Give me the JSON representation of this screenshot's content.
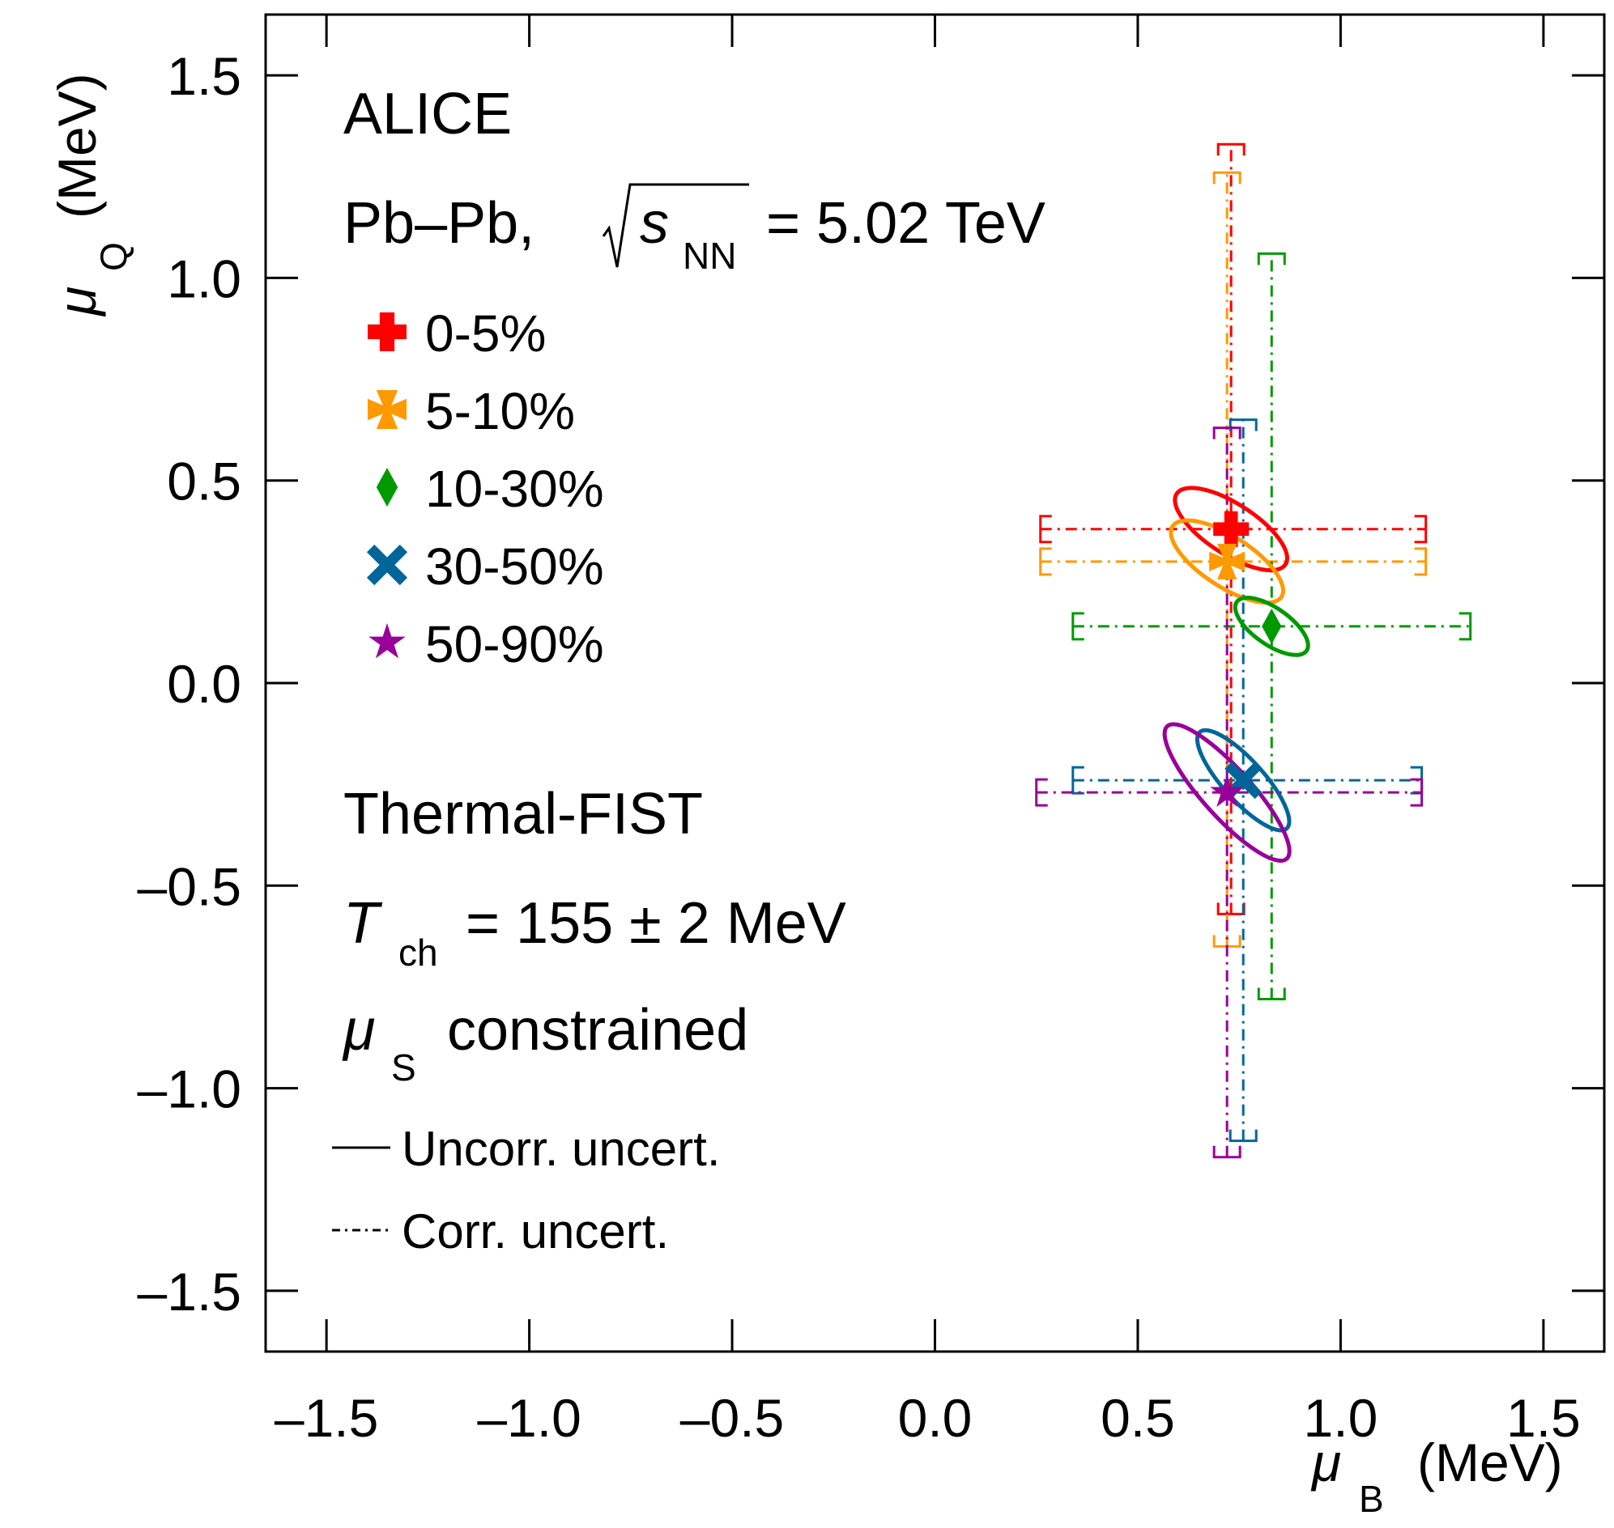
{
  "chart_data": {
    "type": "scatter",
    "xlabel": {
      "symbol": "μ",
      "sub": "B",
      "unit": "(MeV)"
    },
    "ylabel": {
      "symbol": "μ",
      "sub": "Q",
      "unit": "(MeV)"
    },
    "xlim": [
      -1.65,
      1.65
    ],
    "ylim": [
      -1.65,
      1.65
    ],
    "xticks": [
      -1.5,
      -1.0,
      -0.5,
      0.0,
      0.5,
      1.0,
      1.5
    ],
    "xtick_labels": [
      "–1.5",
      "–1.0",
      "–0.5",
      "0.0",
      "0.5",
      "1.0",
      "1.5"
    ],
    "yticks": [
      -1.5,
      -1.0,
      -0.5,
      0.0,
      0.5,
      1.0,
      1.5
    ],
    "ytick_labels": [
      "–1.5",
      "–1.0",
      "–0.5",
      "0.0",
      "0.5",
      "1.0",
      "1.5"
    ],
    "annotations": {
      "experiment": "ALICE",
      "system_prefix": "Pb–Pb,",
      "energy_s": "s",
      "energy_sub": "NN",
      "energy_value": "= 5.02 TeV",
      "model": "Thermal-FIST",
      "temp_symbol": "T",
      "temp_sub": "ch",
      "temp_value": "= 155 ± 2 MeV",
      "mus_symbol": "μ",
      "mus_sub": "S",
      "mus_text": "constrained"
    },
    "line_legend": [
      {
        "label": "Uncorr. uncert.",
        "style": "solid"
      },
      {
        "label": "Corr. uncert.",
        "style": "dashdot"
      }
    ],
    "series": [
      {
        "name": "0-5%",
        "color": "#ff0000",
        "marker": "cross",
        "muB": 0.73,
        "muQ": 0.38,
        "corr_x": [
          0.26,
          1.21
        ],
        "corr_y": [
          -0.57,
          1.33
        ],
        "ellipse": {
          "rx": 0.16,
          "ry": 0.062,
          "angle_deg": -33
        }
      },
      {
        "name": "5-10%",
        "color": "#ff9900",
        "marker": "open-cross",
        "muB": 0.72,
        "muQ": 0.3,
        "corr_x": [
          0.26,
          1.21
        ],
        "corr_y": [
          -0.65,
          1.26
        ],
        "ellipse": {
          "rx": 0.16,
          "ry": 0.062,
          "angle_deg": -33
        }
      },
      {
        "name": "10-30%",
        "color": "#009900",
        "marker": "diamond",
        "muB": 0.83,
        "muQ": 0.14,
        "corr_x": [
          0.34,
          1.32
        ],
        "corr_y": [
          -0.78,
          1.06
        ],
        "ellipse": {
          "rx": 0.105,
          "ry": 0.045,
          "angle_deg": -35
        }
      },
      {
        "name": "30-50%",
        "color": "#006699",
        "marker": "x",
        "muB": 0.76,
        "muQ": -0.24,
        "corr_x": [
          0.34,
          1.2
        ],
        "corr_y": [
          -1.13,
          0.65
        ],
        "ellipse": {
          "rx": 0.16,
          "ry": 0.05,
          "angle_deg": -48
        }
      },
      {
        "name": "50-90%",
        "color": "#990099",
        "marker": "star",
        "muB": 0.72,
        "muQ": -0.27,
        "corr_x": [
          0.25,
          1.2
        ],
        "corr_y": [
          -1.17,
          0.63
        ],
        "ellipse": {
          "rx": 0.22,
          "ry": 0.06,
          "angle_deg": -48
        }
      }
    ]
  }
}
